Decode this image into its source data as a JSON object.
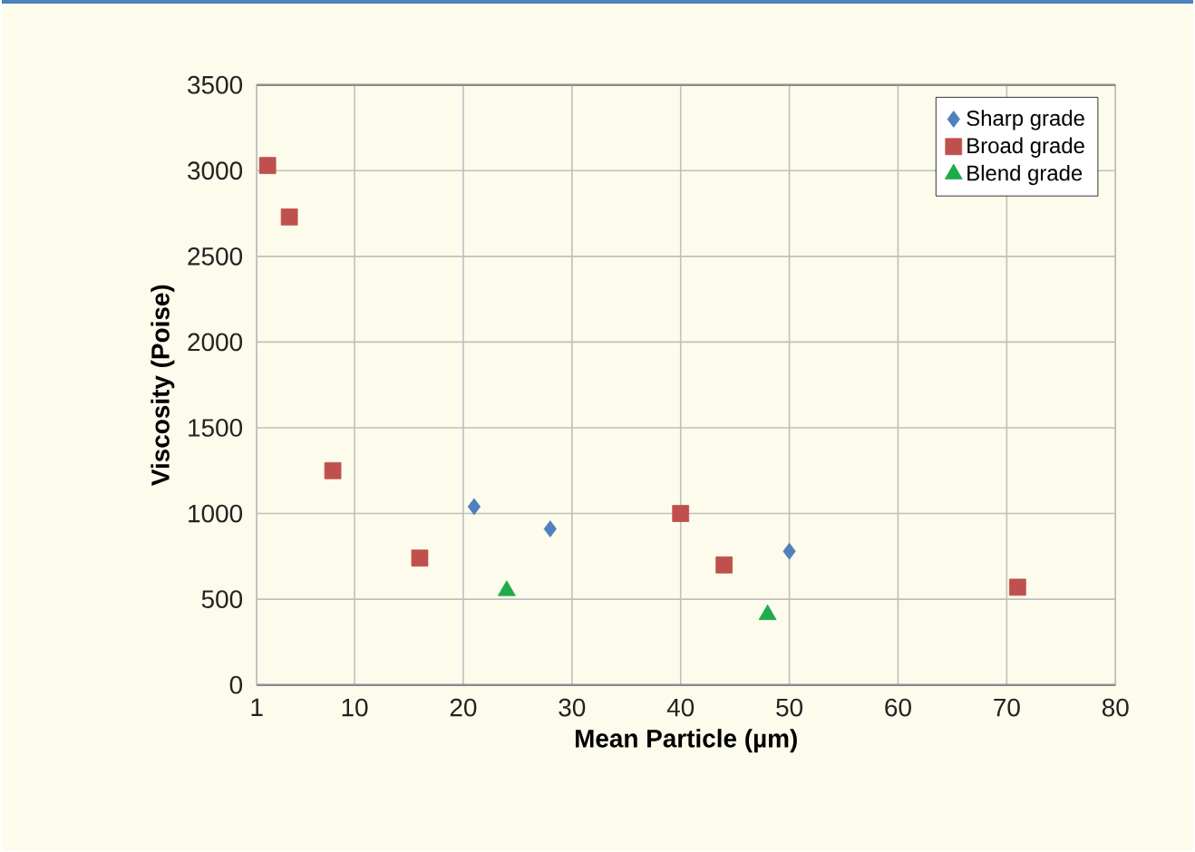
{
  "chart_data": {
    "type": "scatter",
    "xlabel": "Mean Particle (µm)",
    "ylabel": "Viscosity (Poise)",
    "xlim": [
      1,
      80
    ],
    "xticks": [
      1,
      10,
      20,
      30,
      40,
      50,
      60,
      70,
      80
    ],
    "ylim": [
      0,
      3500
    ],
    "yticks": [
      0,
      500,
      1000,
      1500,
      2000,
      2500,
      3000,
      3500
    ],
    "grid": true,
    "legend": "top right",
    "series": [
      {
        "name": "Sharp grade",
        "color": "#4f81bd",
        "marker": "diamond",
        "x": [
          21,
          28,
          50
        ],
        "values": [
          1040,
          910,
          780
        ]
      },
      {
        "name": "Broad grade",
        "color": "#c0504d",
        "marker": "square",
        "x": [
          2,
          4,
          8,
          16,
          40,
          44,
          71
        ],
        "values": [
          3030,
          2730,
          1250,
          740,
          1000,
          700,
          570
        ]
      },
      {
        "name": "Blend grade",
        "color": "#1faa4b",
        "marker": "triangle",
        "x": [
          24,
          48
        ],
        "values": [
          550,
          410
        ]
      }
    ]
  }
}
